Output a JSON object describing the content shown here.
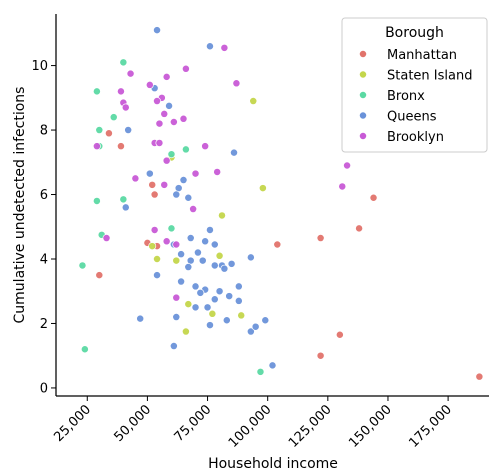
{
  "chart_data": {
    "type": "scatter",
    "xlabel": "Household income",
    "ylabel": "Cumulative undetected infections",
    "xlim": [
      12000,
      192000
    ],
    "ylim": [
      -0.25,
      11.6
    ],
    "x_ticks": [
      25000,
      50000,
      75000,
      100000,
      125000,
      150000,
      175000
    ],
    "x_tick_labels": [
      "25,000",
      "50,000",
      "75,000",
      "100,000",
      "125,000",
      "150,000",
      "175,000"
    ],
    "y_ticks": [
      0,
      2,
      4,
      6,
      8,
      10
    ],
    "y_tick_labels": [
      "0",
      "2",
      "4",
      "6",
      "8",
      "10"
    ],
    "legend": {
      "title": "Borough",
      "placement": "top-right"
    },
    "series": [
      {
        "name": "Manhattan",
        "color": "#e1736b",
        "points": [
          [
            34000,
            7.9
          ],
          [
            39000,
            7.5
          ],
          [
            53000,
            6.0
          ],
          [
            52000,
            6.3
          ],
          [
            50000,
            4.5
          ],
          [
            54000,
            4.4
          ],
          [
            30000,
            3.5
          ],
          [
            104000,
            4.45
          ],
          [
            122000,
            4.65
          ],
          [
            138000,
            4.95
          ],
          [
            144000,
            5.9
          ],
          [
            130000,
            1.65
          ],
          [
            122000,
            1.0
          ],
          [
            188000,
            0.35
          ]
        ]
      },
      {
        "name": "Staten Island",
        "color": "#c4d64b",
        "points": [
          [
            60000,
            7.15
          ],
          [
            81000,
            5.35
          ],
          [
            98000,
            6.2
          ],
          [
            94000,
            8.9
          ],
          [
            52000,
            4.4
          ],
          [
            54000,
            4.0
          ],
          [
            62000,
            3.95
          ],
          [
            80000,
            4.1
          ],
          [
            67000,
            2.6
          ],
          [
            66000,
            1.75
          ],
          [
            77000,
            2.3
          ],
          [
            89000,
            2.25
          ]
        ]
      },
      {
        "name": "Bronx",
        "color": "#5bd9a3",
        "points": [
          [
            40000,
            10.1
          ],
          [
            29000,
            9.2
          ],
          [
            36000,
            8.4
          ],
          [
            30000,
            8.0
          ],
          [
            30000,
            7.5
          ],
          [
            29000,
            5.8
          ],
          [
            40000,
            5.85
          ],
          [
            60000,
            7.25
          ],
          [
            66000,
            7.4
          ],
          [
            60000,
            4.95
          ],
          [
            31000,
            4.75
          ],
          [
            23000,
            3.8
          ],
          [
            24000,
            1.2
          ],
          [
            97000,
            0.5
          ]
        ]
      },
      {
        "name": "Queens",
        "color": "#6a92d9",
        "points": [
          [
            54000,
            11.1
          ],
          [
            76000,
            10.6
          ],
          [
            53000,
            9.3
          ],
          [
            59000,
            8.75
          ],
          [
            42000,
            8.0
          ],
          [
            86000,
            7.3
          ],
          [
            51000,
            6.65
          ],
          [
            63000,
            6.2
          ],
          [
            65000,
            6.45
          ],
          [
            62000,
            6.0
          ],
          [
            67000,
            5.9
          ],
          [
            41000,
            5.6
          ],
          [
            76000,
            4.9
          ],
          [
            68000,
            4.65
          ],
          [
            74000,
            4.55
          ],
          [
            78000,
            4.45
          ],
          [
            61000,
            4.45
          ],
          [
            71000,
            4.2
          ],
          [
            64000,
            4.15
          ],
          [
            68000,
            3.95
          ],
          [
            73000,
            3.95
          ],
          [
            78000,
            3.8
          ],
          [
            81000,
            3.8
          ],
          [
            85000,
            3.85
          ],
          [
            93000,
            4.05
          ],
          [
            54000,
            3.5
          ],
          [
            67000,
            3.75
          ],
          [
            82000,
            3.7
          ],
          [
            64000,
            3.3
          ],
          [
            70000,
            3.15
          ],
          [
            74000,
            3.05
          ],
          [
            88000,
            3.15
          ],
          [
            72000,
            2.95
          ],
          [
            80000,
            3.0
          ],
          [
            78000,
            2.75
          ],
          [
            84000,
            2.85
          ],
          [
            70000,
            2.5
          ],
          [
            75000,
            2.5
          ],
          [
            88000,
            2.7
          ],
          [
            62000,
            2.2
          ],
          [
            83000,
            2.1
          ],
          [
            99000,
            2.1
          ],
          [
            76000,
            1.95
          ],
          [
            93000,
            1.75
          ],
          [
            95000,
            1.9
          ],
          [
            47000,
            2.15
          ],
          [
            61000,
            1.3
          ],
          [
            102000,
            0.7
          ]
        ]
      },
      {
        "name": "Brooklyn",
        "color": "#c85ad6",
        "points": [
          [
            82000,
            10.55
          ],
          [
            66000,
            9.9
          ],
          [
            43000,
            9.75
          ],
          [
            39000,
            9.2
          ],
          [
            51000,
            9.4
          ],
          [
            58000,
            9.65
          ],
          [
            40000,
            8.85
          ],
          [
            87000,
            9.45
          ],
          [
            56000,
            9.0
          ],
          [
            57000,
            8.5
          ],
          [
            54000,
            8.9
          ],
          [
            61000,
            8.25
          ],
          [
            41000,
            8.7
          ],
          [
            55000,
            8.2
          ],
          [
            65000,
            8.35
          ],
          [
            53000,
            7.6
          ],
          [
            55000,
            7.6
          ],
          [
            29000,
            7.5
          ],
          [
            74000,
            7.5
          ],
          [
            58000,
            7.05
          ],
          [
            70000,
            6.65
          ],
          [
            79000,
            6.7
          ],
          [
            45000,
            6.5
          ],
          [
            57000,
            6.3
          ],
          [
            69000,
            5.55
          ],
          [
            53000,
            4.9
          ],
          [
            58000,
            4.55
          ],
          [
            62000,
            4.45
          ],
          [
            33000,
            4.65
          ],
          [
            62000,
            2.8
          ],
          [
            133000,
            6.9
          ],
          [
            131000,
            6.25
          ]
        ]
      }
    ]
  }
}
